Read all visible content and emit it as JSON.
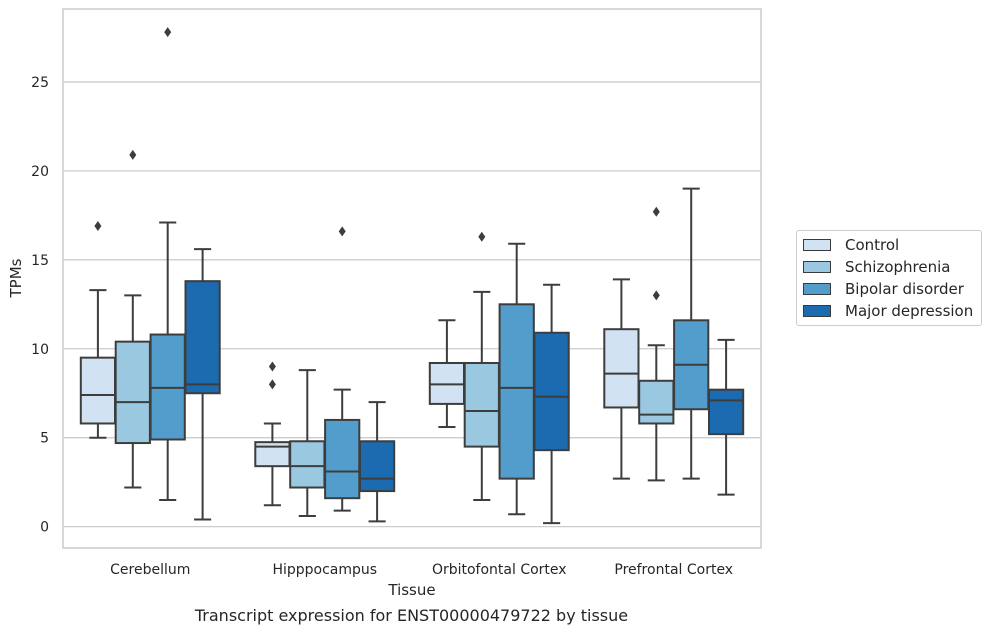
{
  "chart_data": {
    "type": "box",
    "title": "",
    "caption": "Transcript expression for ENST00000479722 by tissue",
    "xlabel": "Tissue",
    "ylabel": "TPMs",
    "ylim": [
      -1.2,
      29.1
    ],
    "yticks": [
      0,
      5,
      10,
      15,
      20,
      25
    ],
    "grid": "horizontal",
    "legend_position": "right",
    "categories": [
      "Cerebellum",
      "Hipppocampus",
      "Orbitofontal Cortex",
      "Prefrontal Cortex"
    ],
    "series": [
      {
        "name": "Control",
        "color": "#d1e2f2",
        "boxes": [
          {
            "whislo": 5.0,
            "q1": 5.8,
            "med": 7.4,
            "q3": 9.5,
            "whishi": 13.3,
            "fliers": [
              16.9
            ]
          },
          {
            "whislo": 1.2,
            "q1": 3.4,
            "med": 4.5,
            "q3": 4.75,
            "whishi": 5.8,
            "fliers": [
              8.0,
              9.0
            ]
          },
          {
            "whislo": 5.6,
            "q1": 6.9,
            "med": 8.0,
            "q3": 9.2,
            "whishi": 11.6,
            "fliers": []
          },
          {
            "whislo": 2.7,
            "q1": 6.7,
            "med": 8.6,
            "q3": 11.1,
            "whishi": 13.9,
            "fliers": []
          }
        ]
      },
      {
        "name": "Schizophrenia",
        "color": "#9ac8e0",
        "boxes": [
          {
            "whislo": 2.2,
            "q1": 4.7,
            "med": 7.0,
            "q3": 10.4,
            "whishi": 13.0,
            "fliers": [
              20.9
            ]
          },
          {
            "whislo": 0.6,
            "q1": 2.2,
            "med": 3.4,
            "q3": 4.8,
            "whishi": 8.8,
            "fliers": []
          },
          {
            "whislo": 1.5,
            "q1": 4.5,
            "med": 6.5,
            "q3": 9.2,
            "whishi": 13.2,
            "fliers": [
              16.3
            ]
          },
          {
            "whislo": 2.6,
            "q1": 5.8,
            "med": 6.3,
            "q3": 8.2,
            "whishi": 10.2,
            "fliers": [
              13.0,
              17.7
            ]
          }
        ]
      },
      {
        "name": "Bipolar disorder",
        "color": "#529dcc",
        "boxes": [
          {
            "whislo": 1.5,
            "q1": 4.9,
            "med": 7.8,
            "q3": 10.8,
            "whishi": 17.1,
            "fliers": [
              27.8
            ]
          },
          {
            "whislo": 0.9,
            "q1": 1.6,
            "med": 3.1,
            "q3": 6.0,
            "whishi": 7.7,
            "fliers": [
              16.6
            ]
          },
          {
            "whislo": 0.7,
            "q1": 2.7,
            "med": 7.8,
            "q3": 12.5,
            "whishi": 15.9,
            "fliers": []
          },
          {
            "whislo": 2.7,
            "q1": 6.6,
            "med": 9.1,
            "q3": 11.6,
            "whishi": 19.0,
            "fliers": []
          }
        ]
      },
      {
        "name": "Major depression",
        "color": "#1c6aaf",
        "boxes": [
          {
            "whislo": 0.4,
            "q1": 7.5,
            "med": 8.0,
            "q3": 13.8,
            "whishi": 15.6,
            "fliers": []
          },
          {
            "whislo": 0.3,
            "q1": 2.0,
            "med": 2.7,
            "q3": 4.8,
            "whishi": 7.0,
            "fliers": []
          },
          {
            "whislo": 0.2,
            "q1": 4.3,
            "med": 7.3,
            "q3": 10.9,
            "whishi": 13.6,
            "fliers": []
          },
          {
            "whislo": 1.8,
            "q1": 5.2,
            "med": 7.1,
            "q3": 7.7,
            "whishi": 10.5,
            "fliers": []
          }
        ]
      }
    ]
  }
}
